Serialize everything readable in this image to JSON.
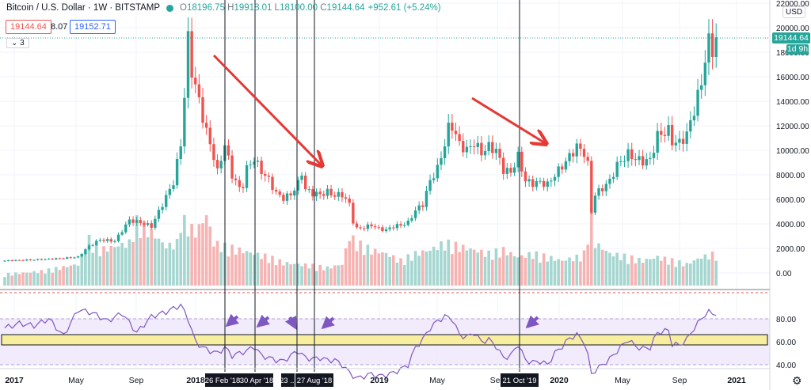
{
  "header": {
    "title": "Bitcoin / U.S. Dollar · 1W · BITSTAMP",
    "ohlc": [
      {
        "k": "O",
        "v": "18196.75"
      },
      {
        "k": "H",
        "v": "19918.01"
      },
      {
        "k": "L",
        "v": "18100.00"
      },
      {
        "k": "C",
        "v": "19144.64"
      }
    ],
    "change": "+952.61 (+5.24%)"
  },
  "sell_price": "19144.64",
  "spread": "8.07",
  "buy_price": "19152.71",
  "collapse_count": "3",
  "currency": "USD",
  "last_price_label": "19144.64",
  "countdown_label": "1d 9h",
  "colors": {
    "up": "#26a69a",
    "down": "#ef5350",
    "arrow": "#e53935",
    "rsi": "#7e57c2",
    "band": "#f7eea0"
  },
  "chart_data": {
    "type": "candlestick",
    "price_axis": {
      "ticks": [
        "22000.00",
        "20000.00",
        "18000.00",
        "16000.00",
        "14000.00",
        "12000.00",
        "10000.00",
        "8000.00",
        "6000.00",
        "4000.00",
        "2000.00",
        "0.00"
      ]
    },
    "rsi_axis": {
      "ticks": [
        "80.00",
        "60.00",
        "40.00"
      ],
      "ylim": [
        20,
        100
      ],
      "bands": [
        30,
        70
      ]
    },
    "time_axis": {
      "ticks": [
        "2017",
        "May",
        "Sep",
        "2018",
        "2019",
        "May",
        "Sep",
        "2020",
        "May",
        "Sep",
        "2021"
      ]
    },
    "vertical_markers": [
      "26 Feb '18",
      "30 Apr '18",
      "23 ...",
      "27 Aug '18",
      "21 Oct '19"
    ],
    "price_anchors": [
      [
        0,
        1000
      ],
      [
        10,
        1100
      ],
      [
        16,
        1200
      ],
      [
        20,
        1300
      ],
      [
        23,
        2200
      ],
      [
        26,
        2700
      ],
      [
        30,
        2600
      ],
      [
        34,
        4300
      ],
      [
        37,
        4100
      ],
      [
        40,
        3800
      ],
      [
        43,
        5600
      ],
      [
        46,
        7400
      ],
      [
        48,
        10500
      ],
      [
        49,
        14500
      ],
      [
        50,
        19000
      ],
      [
        51,
        16500
      ],
      [
        53,
        14000
      ],
      [
        55,
        11500
      ],
      [
        57,
        9500
      ],
      [
        58,
        8200
      ],
      [
        60,
        10500
      ],
      [
        62,
        8000
      ],
      [
        64,
        6900
      ],
      [
        65,
        7200
      ],
      [
        66,
        8500
      ],
      [
        68,
        9300
      ],
      [
        70,
        8300
      ],
      [
        72,
        7600
      ],
      [
        74,
        6500
      ],
      [
        76,
        6100
      ],
      [
        78,
        6400
      ],
      [
        80,
        7300
      ],
      [
        81,
        8200
      ],
      [
        82,
        6800
      ],
      [
        84,
        6500
      ],
      [
        86,
        6400
      ],
      [
        88,
        6600
      ],
      [
        90,
        6300
      ],
      [
        92,
        6400
      ],
      [
        94,
        5600
      ],
      [
        95,
        4200
      ],
      [
        96,
        3600
      ],
      [
        98,
        3700
      ],
      [
        100,
        3900
      ],
      [
        102,
        3600
      ],
      [
        104,
        3500
      ],
      [
        106,
        3800
      ],
      [
        108,
        3900
      ],
      [
        110,
        4100
      ],
      [
        112,
        5100
      ],
      [
        114,
        5600
      ],
      [
        116,
        7500
      ],
      [
        118,
        8500
      ],
      [
        120,
        10500
      ],
      [
        121,
        11800
      ],
      [
        122,
        12000
      ],
      [
        124,
        10500
      ],
      [
        126,
        10000
      ],
      [
        128,
        10600
      ],
      [
        130,
        9800
      ],
      [
        132,
        10300
      ],
      [
        134,
        10000
      ],
      [
        136,
        8400
      ],
      [
        138,
        8200
      ],
      [
        140,
        9500
      ],
      [
        142,
        7500
      ],
      [
        144,
        7300
      ],
      [
        146,
        7400
      ],
      [
        148,
        7200
      ],
      [
        150,
        8000
      ],
      [
        152,
        8700
      ],
      [
        154,
        9500
      ],
      [
        156,
        10300
      ],
      [
        158,
        9800
      ],
      [
        159,
        8800
      ],
      [
        160,
        5000
      ],
      [
        161,
        6400
      ],
      [
        163,
        6900
      ],
      [
        165,
        7500
      ],
      [
        167,
        8800
      ],
      [
        170,
        9700
      ],
      [
        172,
        9300
      ],
      [
        174,
        9100
      ],
      [
        176,
        9200
      ],
      [
        178,
        11200
      ],
      [
        181,
        11600
      ],
      [
        182,
        10700
      ],
      [
        184,
        10600
      ],
      [
        186,
        11300
      ],
      [
        188,
        13300
      ],
      [
        190,
        15500
      ],
      [
        191,
        17500
      ],
      [
        192,
        18800
      ],
      [
        193,
        18200
      ],
      [
        194,
        19144
      ]
    ],
    "rsi_anchors": [
      [
        0,
        72
      ],
      [
        4,
        76
      ],
      [
        8,
        74
      ],
      [
        12,
        80
      ],
      [
        16,
        65
      ],
      [
        20,
        88
      ],
      [
        24,
        85
      ],
      [
        28,
        78
      ],
      [
        32,
        85
      ],
      [
        36,
        68
      ],
      [
        40,
        82
      ],
      [
        44,
        86
      ],
      [
        48,
        92
      ],
      [
        50,
        80
      ],
      [
        52,
        60
      ],
      [
        54,
        55
      ],
      [
        56,
        52
      ],
      [
        58,
        50
      ],
      [
        60,
        55
      ],
      [
        62,
        48
      ],
      [
        64,
        50
      ],
      [
        66,
        52
      ],
      [
        68,
        56
      ],
      [
        70,
        48
      ],
      [
        72,
        46
      ],
      [
        74,
        44
      ],
      [
        76,
        43
      ],
      [
        78,
        48
      ],
      [
        80,
        52
      ],
      [
        82,
        46
      ],
      [
        84,
        45
      ],
      [
        86,
        46
      ],
      [
        88,
        44
      ],
      [
        90,
        44
      ],
      [
        92,
        40
      ],
      [
        94,
        33
      ],
      [
        96,
        28
      ],
      [
        98,
        30
      ],
      [
        100,
        32
      ],
      [
        102,
        30
      ],
      [
        104,
        31
      ],
      [
        106,
        33
      ],
      [
        108,
        36
      ],
      [
        110,
        40
      ],
      [
        112,
        55
      ],
      [
        114,
        62
      ],
      [
        116,
        72
      ],
      [
        118,
        78
      ],
      [
        120,
        82
      ],
      [
        122,
        80
      ],
      [
        124,
        66
      ],
      [
        126,
        64
      ],
      [
        128,
        68
      ],
      [
        130,
        60
      ],
      [
        132,
        62
      ],
      [
        134,
        56
      ],
      [
        136,
        46
      ],
      [
        138,
        48
      ],
      [
        140,
        58
      ],
      [
        142,
        44
      ],
      [
        144,
        42
      ],
      [
        146,
        43
      ],
      [
        148,
        40
      ],
      [
        150,
        50
      ],
      [
        152,
        56
      ],
      [
        154,
        63
      ],
      [
        156,
        66
      ],
      [
        158,
        60
      ],
      [
        159,
        48
      ],
      [
        160,
        32
      ],
      [
        161,
        35
      ],
      [
        163,
        40
      ],
      [
        165,
        45
      ],
      [
        167,
        52
      ],
      [
        170,
        62
      ],
      [
        172,
        56
      ],
      [
        174,
        54
      ],
      [
        176,
        55
      ],
      [
        178,
        68
      ],
      [
        181,
        70
      ],
      [
        182,
        58
      ],
      [
        184,
        57
      ],
      [
        186,
        62
      ],
      [
        188,
        72
      ],
      [
        190,
        80
      ],
      [
        191,
        84
      ],
      [
        192,
        86
      ],
      [
        193,
        84
      ],
      [
        194,
        85
      ]
    ],
    "volume_anchors": [
      [
        0,
        0.16
      ],
      [
        10,
        0.2
      ],
      [
        20,
        0.3
      ],
      [
        23,
        0.65
      ],
      [
        26,
        0.5
      ],
      [
        30,
        0.55
      ],
      [
        34,
        0.6
      ],
      [
        36,
        0.9
      ],
      [
        40,
        0.75
      ],
      [
        44,
        0.55
      ],
      [
        47,
        0.6
      ],
      [
        48,
        0.95
      ],
      [
        50,
        0.85
      ],
      [
        52,
        0.75
      ],
      [
        54,
        0.9
      ],
      [
        55,
        1.0
      ],
      [
        57,
        0.6
      ],
      [
        60,
        0.55
      ],
      [
        64,
        0.5
      ],
      [
        68,
        0.45
      ],
      [
        72,
        0.4
      ],
      [
        76,
        0.32
      ],
      [
        80,
        0.3
      ],
      [
        84,
        0.28
      ],
      [
        88,
        0.25
      ],
      [
        92,
        0.3
      ],
      [
        94,
        0.7
      ],
      [
        96,
        0.6
      ],
      [
        100,
        0.5
      ],
      [
        104,
        0.45
      ],
      [
        108,
        0.35
      ],
      [
        112,
        0.45
      ],
      [
        116,
        0.5
      ],
      [
        120,
        0.6
      ],
      [
        124,
        0.55
      ],
      [
        128,
        0.5
      ],
      [
        132,
        0.45
      ],
      [
        136,
        0.5
      ],
      [
        140,
        0.4
      ],
      [
        144,
        0.45
      ],
      [
        148,
        0.4
      ],
      [
        152,
        0.35
      ],
      [
        156,
        0.4
      ],
      [
        158,
        0.45
      ],
      [
        160,
        1.0
      ],
      [
        161,
        0.6
      ],
      [
        165,
        0.45
      ],
      [
        170,
        0.4
      ],
      [
        174,
        0.35
      ],
      [
        178,
        0.4
      ],
      [
        182,
        0.35
      ],
      [
        186,
        0.3
      ],
      [
        190,
        0.4
      ],
      [
        194,
        0.45
      ]
    ]
  }
}
